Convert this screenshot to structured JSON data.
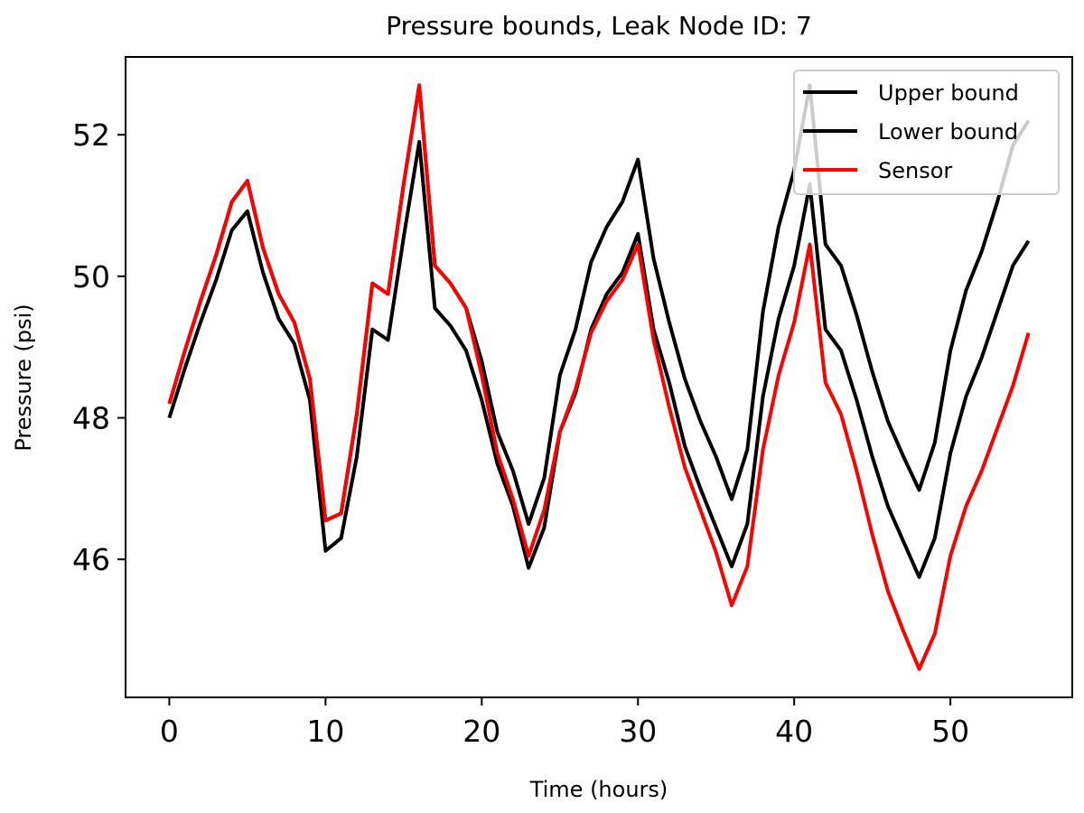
{
  "chart_data": {
    "type": "line",
    "title": "Pressure bounds, Leak Node ID: 7",
    "xlabel": "Time (hours)",
    "ylabel": "Pressure (psi)",
    "xlim": [
      -2.8,
      57.8
    ],
    "ylim": [
      44.05,
      53.1
    ],
    "xticks": [
      0,
      10,
      20,
      30,
      40,
      50
    ],
    "yticks": [
      46,
      48,
      50,
      52
    ],
    "grid": false,
    "legend_position": "top-right",
    "x": [
      0,
      1,
      2,
      3,
      4,
      5,
      6,
      7,
      8,
      9,
      10,
      11,
      12,
      13,
      14,
      15,
      16,
      17,
      18,
      19,
      20,
      21,
      22,
      23,
      24,
      25,
      26,
      27,
      28,
      29,
      30,
      31,
      32,
      33,
      34,
      35,
      36,
      37,
      38,
      39,
      40,
      41,
      42,
      43,
      44,
      45,
      46,
      47,
      48,
      49,
      50,
      51,
      52,
      53,
      54,
      55
    ],
    "series": [
      {
        "name": "Upper bound",
        "color": "#000000",
        "values": [
          48.2,
          48.95,
          49.65,
          50.3,
          51.05,
          51.35,
          50.4,
          49.75,
          49.35,
          48.55,
          46.55,
          46.65,
          48.05,
          49.9,
          49.75,
          51.3,
          52.7,
          50.15,
          49.9,
          49.55,
          48.8,
          47.8,
          47.25,
          46.5,
          47.15,
          48.6,
          49.25,
          50.2,
          50.7,
          51.05,
          51.65,
          50.25,
          49.35,
          48.55,
          47.95,
          47.45,
          46.85,
          47.55,
          49.5,
          50.7,
          51.5,
          52.7,
          50.45,
          50.15,
          49.45,
          48.65,
          47.95,
          47.45,
          46.98,
          47.65,
          48.95,
          49.8,
          50.35,
          51.05,
          51.85,
          52.2
        ]
      },
      {
        "name": "Lower bound",
        "color": "#000000",
        "values": [
          48.0,
          48.7,
          49.35,
          49.95,
          50.65,
          50.92,
          50.05,
          49.4,
          49.05,
          48.25,
          46.12,
          46.3,
          47.45,
          49.25,
          49.1,
          50.55,
          51.9,
          49.55,
          49.3,
          48.95,
          48.25,
          47.35,
          46.75,
          45.88,
          46.45,
          47.8,
          48.35,
          49.25,
          49.75,
          50.05,
          50.6,
          49.25,
          48.5,
          47.6,
          47.0,
          46.45,
          45.9,
          46.5,
          48.3,
          49.4,
          50.15,
          51.3,
          49.25,
          48.95,
          48.25,
          47.45,
          46.75,
          46.25,
          45.75,
          46.3,
          47.5,
          48.3,
          48.85,
          49.5,
          50.15,
          50.5
        ]
      },
      {
        "name": "Sensor",
        "color": "#ff0000",
        "values": [
          48.2,
          48.95,
          49.65,
          50.3,
          51.05,
          51.35,
          50.4,
          49.75,
          49.35,
          48.55,
          46.55,
          46.65,
          48.05,
          49.9,
          49.75,
          51.3,
          52.7,
          50.15,
          49.9,
          49.55,
          48.6,
          47.5,
          46.85,
          46.05,
          46.7,
          47.8,
          48.4,
          49.2,
          49.65,
          49.95,
          50.45,
          49.1,
          48.15,
          47.3,
          46.7,
          46.1,
          45.35,
          45.9,
          47.55,
          48.6,
          49.35,
          50.45,
          48.5,
          48.05,
          47.25,
          46.35,
          45.55,
          44.98,
          44.45,
          44.95,
          46.05,
          46.75,
          47.25,
          47.85,
          48.45,
          49.2
        ]
      }
    ]
  }
}
